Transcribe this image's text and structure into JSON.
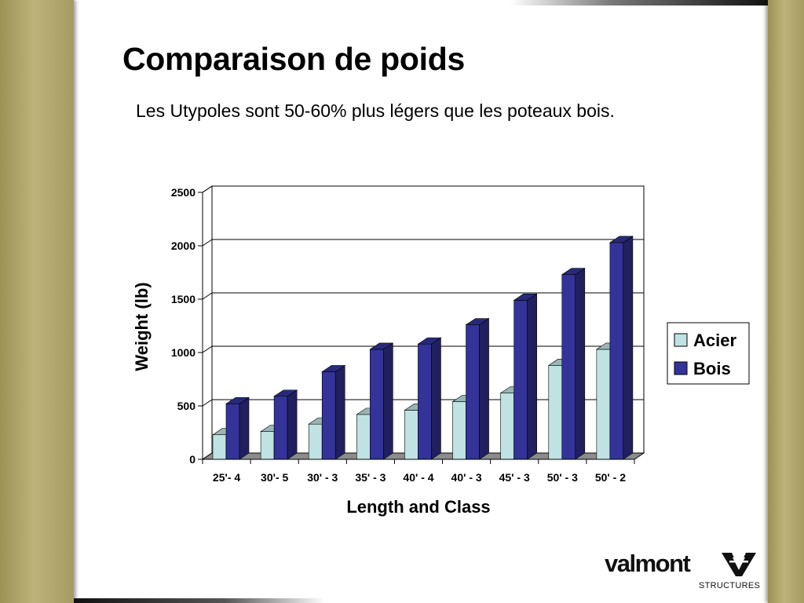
{
  "slide": {
    "title": "Comparaison de poids",
    "subtitle": "Les Utypoles sont 50-60% plus légers que les poteaux bois."
  },
  "chart_data": {
    "type": "bar",
    "style": "3d-clustered-column",
    "title": "",
    "xlabel": "Length and Class",
    "ylabel": "Weight (lb)",
    "ylim": [
      0,
      2500
    ],
    "yticks": [
      0,
      500,
      1000,
      1500,
      2000,
      2500
    ],
    "grid": true,
    "legend_position": "right",
    "categories": [
      "25'- 4",
      "30'- 5",
      "30' - 3",
      "35' - 3",
      "40' - 4",
      "40' - 3",
      "45' - 3",
      "50' - 3",
      "50' - 2"
    ],
    "series": [
      {
        "name": "Acier",
        "color": "#bfe3e3",
        "values": [
          230,
          260,
          330,
          420,
          460,
          540,
          620,
          880,
          1030
        ]
      },
      {
        "name": "Bois",
        "color": "#33339a",
        "values": [
          520,
          590,
          820,
          1030,
          1080,
          1260,
          1490,
          1730,
          2030
        ]
      }
    ]
  },
  "logo": {
    "wordmark": "valmont",
    "tagline": "STRUCTURES"
  }
}
